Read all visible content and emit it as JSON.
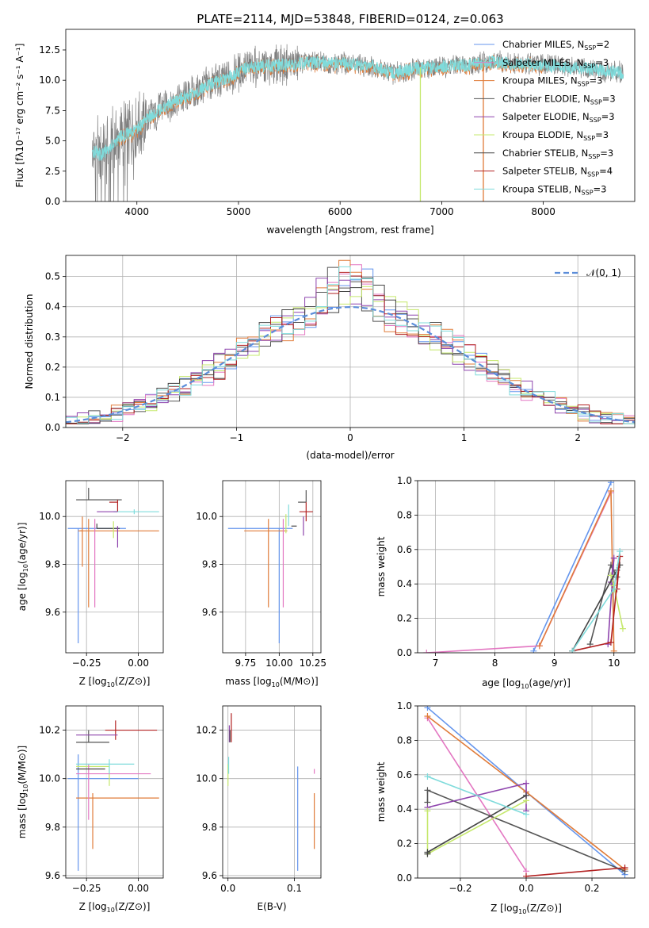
{
  "title": "PLATE=2114, MJD=53848, FIBERID=0124, z=0.063",
  "colors": [
    "#6495ed",
    "#e07b39",
    "#e5e050",
    "#555555",
    "#8e44ad",
    "#c5e86c",
    "#444444",
    "#b22222",
    "#7fdbdb",
    "#e377c2",
    "#f39c12",
    "#999999"
  ],
  "legend_entries": [
    {
      "label": "Chabrier MILES, N",
      "sub": "SSP",
      "suffix": "=2",
      "color": "#6495ed"
    },
    {
      "label": "Salpeter MILES, N",
      "sub": "SSP",
      "suffix": "=3",
      "color": "#e377c2"
    },
    {
      "label": "Kroupa MILES, N",
      "sub": "SSP",
      "suffix": "=3",
      "color": "#e07b39"
    },
    {
      "label": "Chabrier ELODIE, N",
      "sub": "SSP",
      "suffix": "=3",
      "color": "#555555"
    },
    {
      "label": "Salpeter ELODIE, N",
      "sub": "SSP",
      "suffix": "=3",
      "color": "#8e44ad"
    },
    {
      "label": "Kroupa ELODIE, N",
      "sub": "SSP",
      "suffix": "=3",
      "color": "#c5e86c"
    },
    {
      "label": "Chabrier STELIB, N",
      "sub": "SSP",
      "suffix": "=3",
      "color": "#444444"
    },
    {
      "label": "Salpeter STELIB, N",
      "sub": "SSP",
      "suffix": "=4",
      "color": "#b22222"
    },
    {
      "label": "Kroupa STELIB, N",
      "sub": "SSP",
      "suffix": "=3",
      "color": "#7fdbdb"
    }
  ],
  "chart_data": [
    {
      "id": "spectrum",
      "type": "line",
      "xlabel": "wavelength [Angstrom, rest frame]",
      "ylabel": "Flux [fλ10⁻¹⁷ erg cm⁻² s⁻¹ A⁻¹]",
      "xlim": [
        3300,
        8900
      ],
      "ylim": [
        0,
        14.2
      ],
      "xticks": [
        4000,
        5000,
        6000,
        7000,
        8000
      ],
      "xtick_labels": [
        "4000",
        "5000",
        "6000",
        "7000",
        "8000"
      ],
      "yticks": [
        0,
        2.5,
        5,
        7.5,
        10,
        12.5
      ],
      "ytick_labels": [
        "0.0",
        "2.5",
        "5.0",
        "7.5",
        "10.0",
        "12.5"
      ],
      "continuum": {
        "x": [
          3550,
          3650,
          3750,
          3850,
          3950,
          4050,
          4150,
          4300,
          4500,
          4700,
          4900,
          5100,
          5300,
          5500,
          5700,
          5900,
          6100,
          6300,
          6500,
          6700,
          6900,
          7100,
          7300,
          7500,
          7700,
          7900,
          8100,
          8300,
          8500,
          8800
        ],
        "y": [
          4.2,
          3.8,
          4.6,
          5.4,
          5.7,
          6.4,
          7.2,
          8.0,
          8.7,
          9.6,
          10.2,
          11.1,
          11.2,
          11.3,
          11.5,
          11.4,
          11.4,
          11.2,
          10.6,
          10.9,
          11.1,
          11.2,
          11.3,
          11.5,
          11.4,
          11.3,
          11.2,
          11.0,
          10.9,
          10.6
        ]
      },
      "outliers": [
        {
          "x": 6790,
          "color": "#c5e86c"
        },
        {
          "x": 7410,
          "color": "#e07b39"
        }
      ]
    },
    {
      "id": "residuals",
      "type": "histogram",
      "xlabel": "(data-model)/error",
      "ylabel": "Normed distribution",
      "xlim": [
        -2.5,
        2.5
      ],
      "ylim": [
        0,
        0.57
      ],
      "xticks": [
        -2,
        -1,
        0,
        1,
        2
      ],
      "xtick_labels": [
        "−2",
        "−1",
        "0",
        "1",
        "2"
      ],
      "yticks": [
        0,
        0.1,
        0.2,
        0.3,
        0.4,
        0.5
      ],
      "ytick_labels": [
        "0.0",
        "0.1",
        "0.2",
        "0.3",
        "0.4",
        "0.5"
      ],
      "bin_edges_start": -2.5,
      "bin_width": 0.1,
      "reference_curve": {
        "label": "𝒩(0, 1)",
        "color": "#5b8dd9"
      }
    },
    {
      "id": "age-vs-Z",
      "type": "errorbar",
      "xlabel_main": "Z [log",
      "xlabel_sub": "10",
      "xlabel_rest": "(Z/Z⊙)]",
      "ylabel_main": "age  [log",
      "ylabel_sub": "10",
      "ylabel_rest": "(age/yr)]",
      "xlim": [
        -0.35,
        0.12
      ],
      "ylim": [
        9.43,
        10.15
      ],
      "xticks": [
        -0.25,
        0.0
      ],
      "xtick_labels": [
        "−0.25",
        "0.00"
      ],
      "yticks": [
        9.6,
        9.8,
        10.0
      ],
      "ytick_labels": [
        "9.6",
        "9.8",
        "10.0"
      ],
      "points": [
        {
          "x": -0.29,
          "y": 9.95,
          "xerr": [
            0.05,
            0.23
          ],
          "yerr": [
            0.48,
            0.0
          ],
          "color": "#6495ed"
        },
        {
          "x": -0.27,
          "y": 9.94,
          "xerr": [
            0.01,
            0.0
          ],
          "yerr": [
            0.15,
            0.06
          ],
          "color": "#e07b39"
        },
        {
          "x": -0.24,
          "y": 9.94,
          "xerr": [
            0.05,
            0.34
          ],
          "yerr": [
            0.32,
            0.05
          ],
          "color": "#e07b39"
        },
        {
          "x": -0.24,
          "y": 10.07,
          "xerr": [
            0.06,
            0.16
          ],
          "yerr": [
            0.0,
            0.05
          ],
          "color": "#555555"
        },
        {
          "x": -0.2,
          "y": 9.95,
          "xerr": [
            0.0,
            0.11
          ],
          "yerr": [
            0.0,
            0.02
          ],
          "color": "#444444"
        },
        {
          "x": -0.1,
          "y": 10.06,
          "xerr": [
            0.04,
            0.0
          ],
          "yerr": [
            0.04,
            0.01
          ],
          "color": "#b22222"
        },
        {
          "x": -0.1,
          "y": 9.95,
          "xerr": [
            0.0,
            0.0
          ],
          "yerr": [
            0.08,
            0.01
          ],
          "color": "#8e44ad"
        },
        {
          "x": -0.12,
          "y": 9.96,
          "xerr": [
            0.0,
            0.0
          ],
          "yerr": [
            0.05,
            0.02
          ],
          "color": "#c5e86c"
        },
        {
          "x": -0.21,
          "y": 9.96,
          "xerr": [
            0.0,
            0.0
          ],
          "yerr": [
            0.34,
            0.03
          ],
          "color": "#e377c2"
        },
        {
          "x": -0.02,
          "y": 10.02,
          "xerr": [
            0.1,
            0.12
          ],
          "yerr": [
            0.01,
            0.01
          ],
          "color": "#7fdbdb"
        },
        {
          "x": -0.14,
          "y": 10.02,
          "xerr": [
            0.06,
            0.04
          ],
          "yerr": [
            0.0,
            0.0
          ],
          "color": "#8e44ad"
        }
      ]
    },
    {
      "id": "age-vs-mass",
      "type": "errorbar",
      "xlabel_main": "mass [log",
      "xlabel_sub": "10",
      "xlabel_rest": "(M/M⊙)]",
      "xlim": [
        9.58,
        10.31
      ],
      "ylim": [
        9.43,
        10.15
      ],
      "xticks": [
        9.75,
        10.0,
        10.25
      ],
      "xtick_labels": [
        "9.75",
        "10.00",
        "10.25"
      ],
      "yticks": [
        9.6,
        9.8,
        10.0
      ],
      "ytick_labels": [
        "9.6",
        "9.8",
        "10.0"
      ],
      "points": [
        {
          "x": 10.0,
          "y": 9.95,
          "xerr": [
            0.38,
            0.1
          ],
          "yerr": [
            0.48,
            0.0
          ],
          "color": "#6495ed"
        },
        {
          "x": 9.92,
          "y": 9.94,
          "xerr": [
            0.18,
            0.14
          ],
          "yerr": [
            0.32,
            0.05
          ],
          "color": "#e07b39"
        },
        {
          "x": 10.2,
          "y": 10.06,
          "xerr": [
            0.06,
            0.0
          ],
          "yerr": [
            0.0,
            0.05
          ],
          "color": "#555555"
        },
        {
          "x": 10.2,
          "y": 10.02,
          "xerr": [
            0.05,
            0.05
          ],
          "yerr": [
            0.04,
            0.04
          ],
          "color": "#b22222"
        },
        {
          "x": 10.18,
          "y": 9.96,
          "xerr": [
            0.0,
            0.0
          ],
          "yerr": [
            0.04,
            0.04
          ],
          "color": "#8e44ad"
        },
        {
          "x": 10.05,
          "y": 9.98,
          "xerr": [
            0.0,
            0.0
          ],
          "yerr": [
            0.05,
            0.03
          ],
          "color": "#c5e86c"
        },
        {
          "x": 10.03,
          "y": 9.96,
          "xerr": [
            0.0,
            0.0
          ],
          "yerr": [
            0.34,
            0.03
          ],
          "color": "#e377c2"
        },
        {
          "x": 10.07,
          "y": 10.0,
          "xerr": [
            0.0,
            0.0
          ],
          "yerr": [
            0.04,
            0.05
          ],
          "color": "#7fdbdb"
        },
        {
          "x": 10.13,
          "y": 9.96,
          "xerr": [
            0.04,
            0.0
          ],
          "yerr": [
            0.0,
            0.0
          ],
          "color": "#444444"
        }
      ]
    },
    {
      "id": "weight-vs-age",
      "type": "line",
      "xlabel_main": "age  [log",
      "xlabel_sub": "10",
      "xlabel_rest": "(age/yr)]",
      "ylabel": "mass weight",
      "xlim": [
        6.7,
        10.35
      ],
      "ylim": [
        0,
        1
      ],
      "xticks": [
        7,
        8,
        9,
        10
      ],
      "xtick_labels": [
        "7",
        "8",
        "9",
        "10"
      ],
      "yticks": [
        0,
        0.2,
        0.4,
        0.6,
        0.8,
        1.0
      ],
      "ytick_labels": [
        "0.0",
        "0.2",
        "0.4",
        "0.6",
        "0.8",
        "1.0"
      ],
      "series": [
        {
          "color": "#6495ed",
          "x": [
            8.65,
            9.95
          ],
          "y": [
            0.01,
            0.99
          ]
        },
        {
          "color": "#e377c2",
          "x": [
            6.85,
            8.75,
            9.95
          ],
          "y": [
            0.0,
            0.04,
            0.93
          ]
        },
        {
          "color": "#e07b39",
          "x": [
            8.75,
            9.95,
            10.0
          ],
          "y": [
            0.04,
            0.94,
            0.01
          ]
        },
        {
          "color": "#555555",
          "x": [
            9.6,
            9.95,
            10.05
          ],
          "y": [
            0.05,
            0.51,
            0.44
          ]
        },
        {
          "color": "#8e44ad",
          "x": [
            9.9,
            10.0,
            9.95
          ],
          "y": [
            0.05,
            0.55,
            0.41
          ]
        },
        {
          "color": "#c5e86c",
          "x": [
            9.95,
            10.0,
            10.15
          ],
          "y": [
            0.45,
            0.39,
            0.14
          ]
        },
        {
          "color": "#444444",
          "x": [
            9.3,
            10.05,
            10.1
          ],
          "y": [
            0.01,
            0.48,
            0.51
          ]
        },
        {
          "color": "#b22222",
          "x": [
            9.3,
            9.95,
            10.1,
            10.05
          ],
          "y": [
            0.01,
            0.06,
            0.56,
            0.37
          ]
        },
        {
          "color": "#7fdbdb",
          "x": [
            9.3,
            10.0,
            10.1
          ],
          "y": [
            0.01,
            0.37,
            0.59
          ]
        }
      ]
    },
    {
      "id": "mass-vs-Z",
      "type": "errorbar",
      "xlabel_main": "Z [log",
      "xlabel_sub": "10",
      "xlabel_rest": "(Z/Z⊙)]",
      "ylabel_main": "mass [log",
      "ylabel_sub": "10",
      "ylabel_rest": "(M/M⊙)]",
      "xlim": [
        -0.35,
        0.12
      ],
      "ylim": [
        9.59,
        10.3
      ],
      "xticks": [
        -0.25,
        0.0
      ],
      "xtick_labels": [
        "−0.25",
        "0.00"
      ],
      "yticks": [
        9.6,
        9.8,
        10.0,
        10.2
      ],
      "ytick_labels": [
        "9.6",
        "9.8",
        "10.0",
        "10.2"
      ],
      "points": [
        {
          "x": -0.29,
          "y": 10.0,
          "xerr": [
            0.05,
            0.29
          ],
          "yerr": [
            0.38,
            0.1
          ],
          "color": "#6495ed"
        },
        {
          "x": -0.22,
          "y": 9.92,
          "xerr": [
            0.08,
            0.32
          ],
          "yerr": [
            0.21,
            0.02
          ],
          "color": "#e07b39"
        },
        {
          "x": -0.24,
          "y": 10.15,
          "xerr": [
            0.06,
            0.1
          ],
          "yerr": [
            0.0,
            0.05
          ],
          "color": "#555555"
        },
        {
          "x": -0.11,
          "y": 10.2,
          "xerr": [
            0.05,
            0.2
          ],
          "yerr": [
            0.04,
            0.04
          ],
          "color": "#b22222"
        },
        {
          "x": -0.16,
          "y": 10.18,
          "xerr": [
            0.14,
            0.06
          ],
          "yerr": [
            0.0,
            0.0
          ],
          "color": "#8e44ad"
        },
        {
          "x": -0.14,
          "y": 10.05,
          "xerr": [
            0.16,
            0.0
          ],
          "yerr": [
            0.08,
            0.0
          ],
          "color": "#c5e86c"
        },
        {
          "x": -0.24,
          "y": 10.02,
          "xerr": [
            0.06,
            0.3
          ],
          "yerr": [
            0.19,
            0.04
          ],
          "color": "#e377c2"
        },
        {
          "x": -0.14,
          "y": 10.06,
          "xerr": [
            0.16,
            0.12
          ],
          "yerr": [
            0.04,
            0.02
          ],
          "color": "#7fdbdb"
        },
        {
          "x": -0.16,
          "y": 10.04,
          "xerr": [
            0.14,
            0.0
          ],
          "yerr": [
            0.0,
            0.0
          ],
          "color": "#444444"
        }
      ]
    },
    {
      "id": "mass-vs-EBV",
      "type": "errorbar",
      "xlabel": "E(B-V)",
      "xlim": [
        -0.008,
        0.14
      ],
      "ylim": [
        9.59,
        10.3
      ],
      "xticks": [
        0.0,
        0.1
      ],
      "xtick_labels": [
        "0.0",
        "0.1"
      ],
      "yticks": [
        9.6,
        9.8,
        10.0,
        10.2
      ],
      "ytick_labels": [
        "9.6",
        "9.8",
        "10.0",
        "10.2"
      ],
      "points": [
        {
          "x": 0.105,
          "y": 10.0,
          "xerr": [
            0,
            0
          ],
          "yerr": [
            0.38,
            0.05
          ],
          "color": "#6495ed"
        },
        {
          "x": 0.13,
          "y": 9.92,
          "xerr": [
            0,
            0
          ],
          "yerr": [
            0.21,
            0.02
          ],
          "color": "#e07b39"
        },
        {
          "x": 0.13,
          "y": 10.02,
          "xerr": [
            0,
            0
          ],
          "yerr": [
            0.0,
            0.02
          ],
          "color": "#e377c2"
        },
        {
          "x": 0.005,
          "y": 10.2,
          "xerr": [
            0,
            0
          ],
          "yerr": [
            0.05,
            0.07
          ],
          "color": "#b22222"
        },
        {
          "x": 0.002,
          "y": 10.18,
          "xerr": [
            0,
            0
          ],
          "yerr": [
            0.03,
            0.04
          ],
          "color": "#8e44ad"
        },
        {
          "x": 0.0,
          "y": 10.02,
          "xerr": [
            0,
            0
          ],
          "yerr": [
            0.05,
            0.04
          ],
          "color": "#c5e86c"
        },
        {
          "x": 0.001,
          "y": 10.06,
          "xerr": [
            0,
            0
          ],
          "yerr": [
            0.04,
            0.03
          ],
          "color": "#7fdbdb"
        },
        {
          "x": 0.003,
          "y": 10.17,
          "xerr": [
            0,
            0
          ],
          "yerr": [
            0.02,
            0.03
          ],
          "color": "#555555"
        }
      ]
    },
    {
      "id": "weight-vs-Z",
      "type": "line",
      "xlabel_main": "Z [log",
      "xlabel_sub": "10",
      "xlabel_rest": "(Z/Z⊙)]",
      "ylabel": "mass weight",
      "xlim": [
        -0.33,
        0.33
      ],
      "ylim": [
        0,
        1
      ],
      "xticks": [
        -0.2,
        0.0,
        0.2
      ],
      "xtick_labels": [
        "−0.2",
        "0.0",
        "0.2"
      ],
      "yticks": [
        0,
        0.2,
        0.4,
        0.6,
        0.8,
        1.0
      ],
      "ytick_labels": [
        "0.0",
        "0.2",
        "0.4",
        "0.6",
        "0.8",
        "1.0"
      ],
      "series": [
        {
          "color": "#6495ed",
          "x": [
            -0.3,
            0.0,
            0.3
          ],
          "y": [
            0.99,
            0.5,
            0.02
          ]
        },
        {
          "color": "#e377c2",
          "x": [
            -0.3,
            0.0
          ],
          "y": [
            0.93,
            0.04
          ]
        },
        {
          "color": "#e07b39",
          "x": [
            -0.3,
            0.0,
            0.3
          ],
          "y": [
            0.94,
            0.5,
            0.05
          ]
        },
        {
          "color": "#555555",
          "x": [
            -0.3,
            -0.3,
            0.3
          ],
          "y": [
            0.44,
            0.51,
            0.04
          ]
        },
        {
          "color": "#8e44ad",
          "x": [
            -0.3,
            0.0,
            0.0
          ],
          "y": [
            0.41,
            0.55,
            0.39
          ]
        },
        {
          "color": "#c5e86c",
          "x": [
            -0.3,
            -0.3,
            0.0
          ],
          "y": [
            0.39,
            0.14,
            0.45
          ]
        },
        {
          "color": "#444444",
          "x": [
            -0.3,
            -0.3,
            0.0
          ],
          "y": [
            0.14,
            0.15,
            0.48
          ]
        },
        {
          "color": "#b22222",
          "x": [
            0.0,
            0.3
          ],
          "y": [
            0.01,
            0.06
          ]
        },
        {
          "color": "#7fdbdb",
          "x": [
            -0.3,
            0.0
          ],
          "y": [
            0.59,
            0.37
          ]
        }
      ]
    }
  ]
}
